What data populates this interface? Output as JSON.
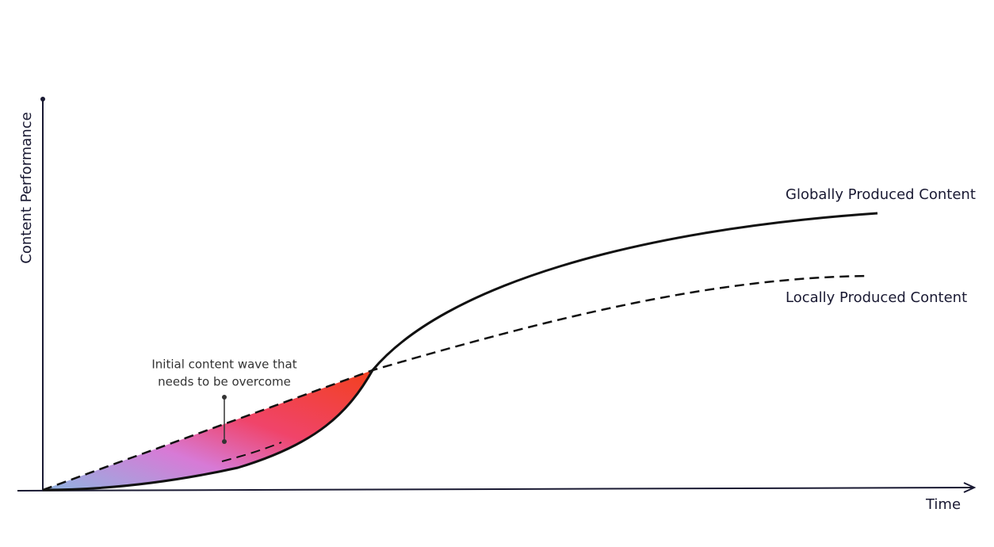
{
  "axes": {
    "y_label": "Content Performance",
    "x_label": "Time"
  },
  "curves": {
    "global_label": "Globally Produced Content",
    "local_label": "Locally Produced Content"
  },
  "annotation": {
    "lines": [
      "Initial content wave that",
      "needs to be overcome"
    ]
  }
}
